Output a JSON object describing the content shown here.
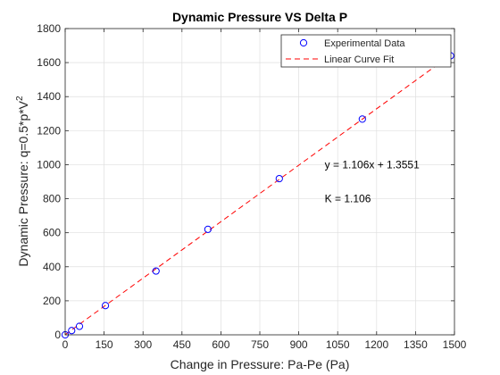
{
  "chart_data": {
    "type": "scatter",
    "title": "Dynamic Pressure VS Delta P",
    "xlabel": "Change in Pressure: Pa-Pe (Pa)",
    "ylabel_prefix": "Dynamic Pressure: q=0.5*p*V",
    "ylabel_sup": "2",
    "xlim": [
      0,
      1500
    ],
    "ylim": [
      0,
      1800
    ],
    "xticks": [
      0,
      150,
      300,
      450,
      600,
      750,
      900,
      1050,
      1200,
      1350,
      1500
    ],
    "yticks": [
      0,
      200,
      400,
      600,
      800,
      1000,
      1200,
      1400,
      1600,
      1800
    ],
    "grid": true,
    "legend_position": "top-right",
    "series": [
      {
        "name": "Experimental Data",
        "style": "markers",
        "color": "#0000ff",
        "points": [
          {
            "x": 0,
            "y": 0
          },
          {
            "x": 25,
            "y": 25
          },
          {
            "x": 55,
            "y": 50
          },
          {
            "x": 155,
            "y": 172
          },
          {
            "x": 350,
            "y": 375
          },
          {
            "x": 550,
            "y": 620
          },
          {
            "x": 825,
            "y": 918
          },
          {
            "x": 1145,
            "y": 1268
          },
          {
            "x": 1485,
            "y": 1640
          }
        ]
      },
      {
        "name": "Linear Curve Fit",
        "style": "dashed-line",
        "color": "#ff0000",
        "slope": 1.106,
        "intercept": 1.3551,
        "x_range": [
          0,
          1485
        ]
      }
    ],
    "annotations": [
      {
        "text": "y = 1.106x + 1.3551",
        "x": 1000,
        "y": 980
      },
      {
        "text": "K = 1.106",
        "x": 1000,
        "y": 780
      }
    ]
  }
}
